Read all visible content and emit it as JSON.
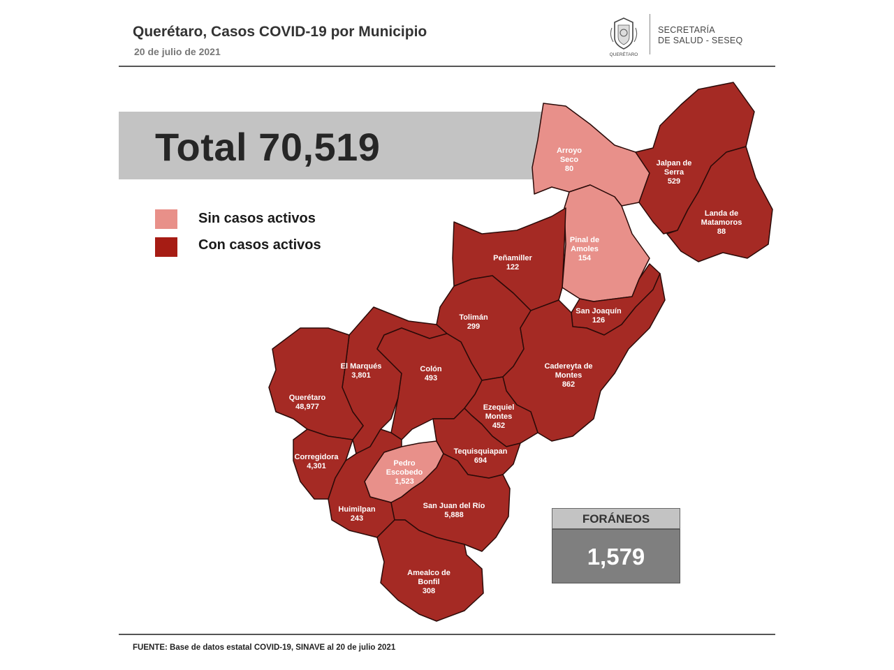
{
  "header": {
    "title": "Querétaro, Casos COVID-19 por Municipio",
    "date": "20 de julio de 2021",
    "agency_line1": "SECRETARÍA",
    "agency_line2": "DE SALUD - SESEQ",
    "logo_text": "QUERÉTARO"
  },
  "total": {
    "label": "Total 70,519"
  },
  "legend": [
    {
      "label": "Sin casos activos",
      "color": "#e89089"
    },
    {
      "label": "Con casos activos",
      "color": "#a61c14"
    }
  ],
  "colors": {
    "with_active": "#a52a24",
    "without_active": "#e8908a",
    "border": "#2a0a08"
  },
  "municipalities": [
    {
      "id": "arroyo-seco",
      "name_lines": [
        "Arroyo",
        "Seco"
      ],
      "value": "80",
      "active": false
    },
    {
      "id": "jalpan",
      "name_lines": [
        "Jalpan de",
        "Serra"
      ],
      "value": "529",
      "active": true
    },
    {
      "id": "landa",
      "name_lines": [
        "Landa de",
        "Matamoros"
      ],
      "value": "88",
      "active": true
    },
    {
      "id": "pinal",
      "name_lines": [
        "Pinal de",
        "Amoles"
      ],
      "value": "154",
      "active": false
    },
    {
      "id": "penamiller",
      "name_lines": [
        "Peñamiller"
      ],
      "value": "122",
      "active": true
    },
    {
      "id": "san-joaquin",
      "name_lines": [
        "San Joaquín"
      ],
      "value": "126",
      "active": true
    },
    {
      "id": "toliman",
      "name_lines": [
        "Tolimán"
      ],
      "value": "299",
      "active": true
    },
    {
      "id": "cadereyta",
      "name_lines": [
        "Cadereyta de",
        "Montes"
      ],
      "value": "862",
      "active": true
    },
    {
      "id": "el-marques",
      "name_lines": [
        "El  Marqués"
      ],
      "value": "3,801",
      "active": true
    },
    {
      "id": "colon",
      "name_lines": [
        "Colón"
      ],
      "value": "493",
      "active": true
    },
    {
      "id": "queretaro",
      "name_lines": [
        "Querétaro"
      ],
      "value": "48,977",
      "active": true
    },
    {
      "id": "ezequiel",
      "name_lines": [
        "Ezequiel",
        "Montes"
      ],
      "value": "452",
      "active": true
    },
    {
      "id": "corregidora",
      "name_lines": [
        "Corregidora"
      ],
      "value": "4,301",
      "active": true
    },
    {
      "id": "pedro-escobedo",
      "name_lines": [
        "Pedro",
        "Escobedo"
      ],
      "value": "1,523",
      "active": false
    },
    {
      "id": "tequisquiapan",
      "name_lines": [
        "Tequisquiapan"
      ],
      "value": "694",
      "active": true
    },
    {
      "id": "huimilpan",
      "name_lines": [
        "Huimilpan"
      ],
      "value": "243",
      "active": true
    },
    {
      "id": "san-juan",
      "name_lines": [
        "San Juan del Río"
      ],
      "value": "5,888",
      "active": true
    },
    {
      "id": "amealco",
      "name_lines": [
        "Amealco de",
        "Bonfil"
      ],
      "value": "308",
      "active": true
    }
  ],
  "foraneos": {
    "label": "FORÁNEOS",
    "value": "1,579"
  },
  "source": "FUENTE:  Base de datos estatal COVID-19,  SINAVE  al 20 de julio 2021"
}
